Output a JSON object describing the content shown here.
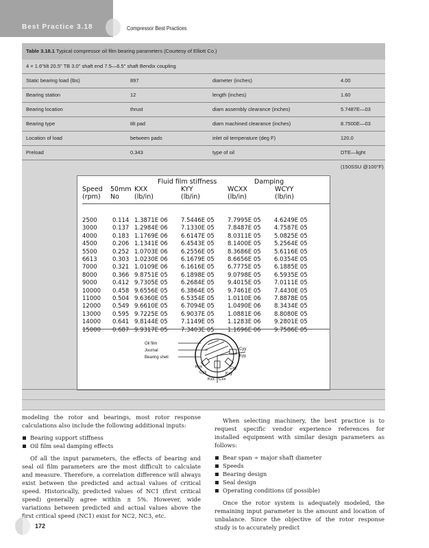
{
  "header": {
    "section": "Best Practice 3.18",
    "book_title": "Compressor Best Practices"
  },
  "table": {
    "caption_bold": "Table 3.18.1",
    "caption": "Typical compressor oil film bearing parameters (Courtesy of Elliott Co.)",
    "subtitle": "4 × 1.6\"tilt 20.5\" TB 3.0\" shaft end 7.5—6.5\" shaft Bendix coupling",
    "params": [
      [
        "Static bearing load (lbs)",
        "897",
        "diameter (inches)",
        "4.00"
      ],
      [
        "Bearing station",
        "12",
        "length (inches)",
        "1.60"
      ],
      [
        "Bearing location",
        "thrust",
        "diam assembly clearance (inches)",
        "5.7487E—03"
      ],
      [
        "Bearing type",
        "tilt pad",
        "diam machined clearance (inches)",
        "8.7500E—03"
      ],
      [
        "Location of load",
        "between pads",
        "inlet oil temperature (deg F)",
        "120.0"
      ],
      [
        "Preload",
        "0.343",
        "type of oil",
        "DTE—light"
      ]
    ],
    "oil_note": "(150SSU @100°F)"
  },
  "stiffness": {
    "group_stiffness": "Fluid film stiffness",
    "group_damping": "Damping",
    "headers": [
      [
        "Speed",
        "(rpm)"
      ],
      [
        "50mm",
        "No"
      ],
      [
        "KXX",
        "(lb/in)"
      ],
      [
        "KYY",
        "(lb/in)"
      ],
      [
        "WCXX",
        "(lb/in)"
      ],
      [
        "WCYY",
        "(lb/in)"
      ]
    ],
    "rows": [
      [
        "2500",
        "0.114",
        "1.3871E 06",
        "7.5446E 05",
        "7.7995E 05",
        "4.6249E 05"
      ],
      [
        "3000",
        "0.137",
        "1.2984E 06",
        "7.1330E 05",
        "7.8487E 05",
        "4.7587E 05"
      ],
      [
        "4000",
        "0.183",
        "1.1769E 06",
        "6.6147E 05",
        "8.0311E 05",
        "5.0825E 05"
      ],
      [
        "4500",
        "0.206",
        "1.1341E 06",
        "6.4543E 05",
        "8.1400E 05",
        "5.2564E 05"
      ],
      [
        "5500",
        "0.252",
        "1.0703E 06",
        "6.2556E 05",
        "8.3686E 05",
        "5.6116E 05"
      ],
      [
        "6613",
        "0.303",
        "1.0230E 06",
        "6.1679E 05",
        "8.6656E 05",
        "6.0354E 05"
      ],
      [
        "7000",
        "0.321",
        "1.0109E 06",
        "6.1616E 05",
        "6.7775E 05",
        "6.1885E 05"
      ],
      [
        "8000",
        "0.366",
        "9.8751E 05",
        "6.1898E 05",
        "9.0798E 05",
        "6.5935E 05"
      ],
      [
        "9000",
        "0.412",
        "9.7305E 05",
        "6.2684E 05",
        "9.4015E 05",
        "7.0111E 05"
      ],
      [
        "10000",
        "0.458",
        "9.6556E 05",
        "6.3864E 05",
        "9.7461E 05",
        "7.4430E 05"
      ],
      [
        "11000",
        "0.504",
        "9.6360E 05",
        "6.5354E 05",
        "1.0110E 06",
        "7.8878E 05"
      ],
      [
        "12000",
        "0.549",
        "9.6610E 05",
        "6.7094E 05",
        "1.0490E 06",
        "8.3434E 05"
      ],
      [
        "13000",
        "0.595",
        "9.7225E 05",
        "6.9037E 05",
        "1.0881E 06",
        "8.8080E 05"
      ],
      [
        "14000",
        "0.641",
        "9.8144E 05",
        "7.1149E 05",
        "1.1283E 06",
        "9.2801E 05"
      ],
      [
        "15000",
        "0.687",
        "9.9317E 05",
        "7.3403E 05",
        "1.1696E 06",
        "9.7586E 05"
      ]
    ]
  },
  "diagram": {
    "oil_film": "Oil film",
    "journal": "Journal",
    "bearing_shell": "Bearing shell",
    "cyy": "Cyy",
    "kyy": "Kyy",
    "kyx": "Kyx",
    "cyx": "Cyx",
    "cxy": "Cxy",
    "kxy": "Kxy",
    "kxx": "Kxx",
    "cxx": "Cxx"
  },
  "body": {
    "left_intro": "modeling the rotor and bearings, most rotor response calculations also include the following additional inputs:",
    "left_bullets": [
      "Bearing support stiffness",
      "Oil film seal damping effects"
    ],
    "left_para": "Of all the input parameters, the effects of bearing and seal oil film parameters are the most difficult to calculate and measure. Therefore, a correlation difference will always exist between the predicted and actual values of critical speed. Historically, predicted values of NC1 (first critical speed) generally agree within ± 5%. However, wide variations between predicted and actual values above the first critical speed (NC1) exist for NC2, NC3, etc.",
    "right_intro": "When selecting machinery, the best practice is to request specific vendor experience references for installed equipment with similar design parameters as follows:",
    "right_bullets": [
      "Bear span ÷ major shaft diameter",
      "Speeds",
      "Bearing design",
      "Seal design",
      "Operating conditions (if possible)"
    ],
    "right_para": "Once the rotor system is adequately modeled, the remaining input parameter is the amount and location of unbalance. Since the objective of the rotor response study is to accurately predict"
  },
  "page_number": "172"
}
